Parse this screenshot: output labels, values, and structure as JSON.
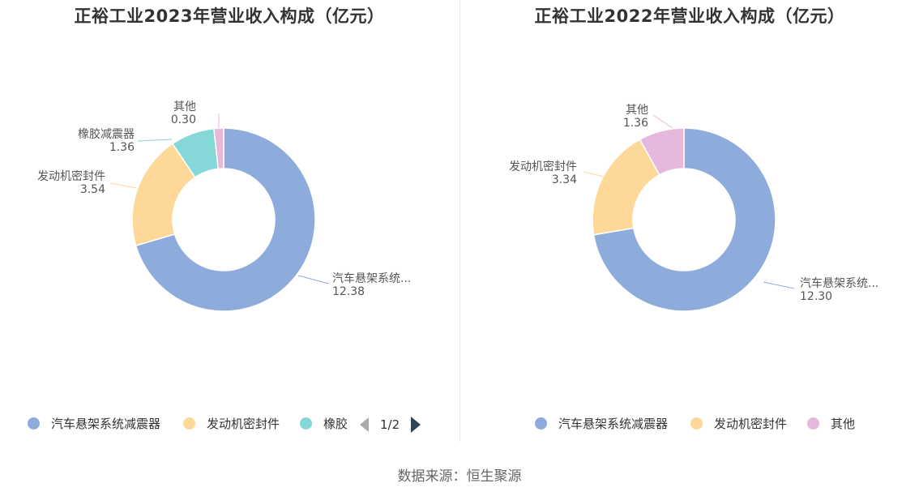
{
  "source": "数据来源：恒生聚源",
  "colors": {
    "auto": "#8eacdb",
    "engine": "#fdd899",
    "rubber": "#86d7d7",
    "other": "#e6b8db"
  },
  "chart_data": [
    {
      "type": "pie",
      "title": "正裕工业2023年营业收入构成（亿元）",
      "slices": [
        {
          "key": "auto",
          "name": "汽车悬架系统减震器",
          "label": "汽车悬架系统...",
          "value": 12.38,
          "value_label": "12.38",
          "color": "#8eacdb"
        },
        {
          "key": "engine",
          "name": "发动机密封件",
          "label": "发动机密封件",
          "value": 3.54,
          "value_label": "3.54",
          "color": "#fdd899"
        },
        {
          "key": "rubber",
          "name": "橡胶减震器",
          "label": "橡胶减震器",
          "value": 1.36,
          "value_label": "1.36",
          "color": "#86d7d7"
        },
        {
          "key": "other",
          "name": "其他",
          "label": "其他",
          "value": 0.3,
          "value_label": "0.30",
          "color": "#e6b8db"
        }
      ],
      "legend": {
        "items": [
          {
            "label": "汽车悬架系统减震器",
            "color": "#8eacdb"
          },
          {
            "label": "发动机密封件",
            "color": "#fdd899"
          },
          {
            "label": "橡胶",
            "color": "#86d7d7"
          }
        ],
        "page": "1/2"
      }
    },
    {
      "type": "pie",
      "title": "正裕工业2022年营业收入构成（亿元）",
      "slices": [
        {
          "key": "auto",
          "name": "汽车悬架系统减震器",
          "label": "汽车悬架系统...",
          "value": 12.3,
          "value_label": "12.30",
          "color": "#8eacdb"
        },
        {
          "key": "engine",
          "name": "发动机密封件",
          "label": "发动机密封件",
          "value": 3.34,
          "value_label": "3.34",
          "color": "#fdd899"
        },
        {
          "key": "other",
          "name": "其他",
          "label": "其他",
          "value": 1.36,
          "value_label": "1.36",
          "color": "#e6b8db"
        }
      ],
      "legend": {
        "items": [
          {
            "label": "汽车悬架系统减震器",
            "color": "#8eacdb"
          },
          {
            "label": "发动机密封件",
            "color": "#fdd899"
          },
          {
            "label": "其他",
            "color": "#e6b8db"
          }
        ],
        "page": ""
      }
    }
  ]
}
